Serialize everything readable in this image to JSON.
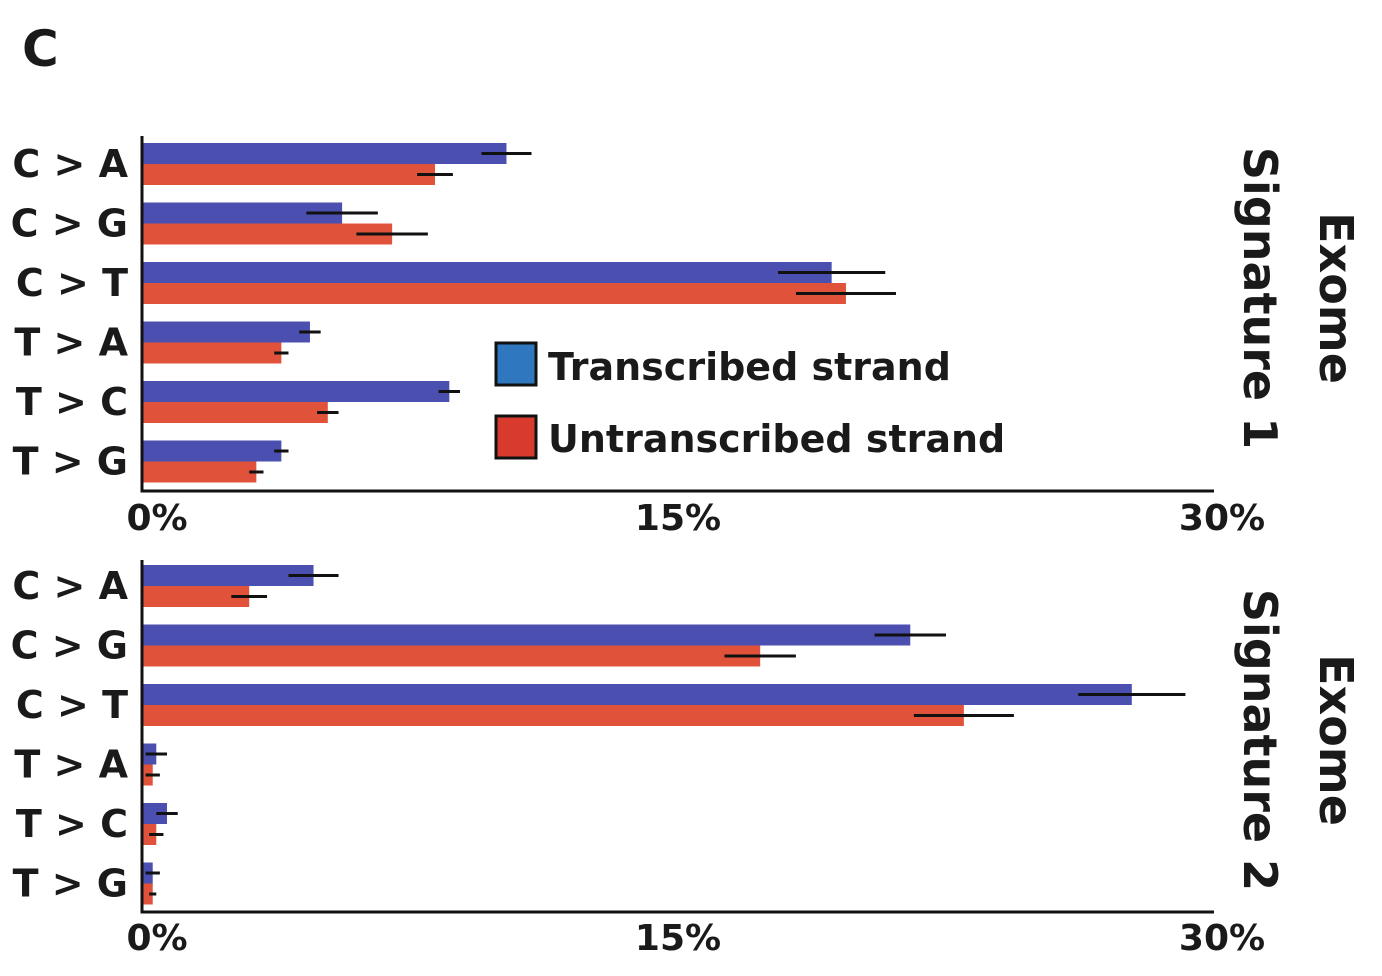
{
  "panel_label": "C",
  "legend": {
    "transcribed": "Transcribed strand",
    "untranscribed": "Untranscribed strand"
  },
  "colors": {
    "transcribed": "#4a4fb0",
    "untranscribed": "#e0533a",
    "legend_transcribed": "#2f78c0",
    "legend_untranscribed": "#d83a2e"
  },
  "chart_data": [
    {
      "type": "bar",
      "orientation": "horizontal",
      "title_line1": "Exome",
      "title_line2": "Signature 1",
      "categories": [
        "C > A",
        "C > G",
        "C > T",
        "T > A",
        "T > C",
        "T > G"
      ],
      "series": [
        {
          "name": "Transcribed strand",
          "values": [
            10.2,
            5.6,
            19.3,
            4.7,
            8.6,
            3.9
          ],
          "errors": [
            0.7,
            1.0,
            1.5,
            0.3,
            0.3,
            0.2
          ]
        },
        {
          "name": "Untranscribed strand",
          "values": [
            8.2,
            7.0,
            19.7,
            3.9,
            5.2,
            3.2
          ],
          "errors": [
            0.5,
            1.0,
            1.4,
            0.2,
            0.3,
            0.2
          ]
        }
      ],
      "xlim": [
        0,
        30
      ],
      "xticks": [
        "0%",
        "15%",
        "30%"
      ],
      "legend_position": "center-right"
    },
    {
      "type": "bar",
      "orientation": "horizontal",
      "title_line1": "Exome",
      "title_line2": "Signature 2",
      "categories": [
        "C > A",
        "C > G",
        "C > T",
        "T > A",
        "T > C",
        "T > G"
      ],
      "series": [
        {
          "name": "Transcribed strand",
          "values": [
            4.8,
            21.5,
            27.7,
            0.4,
            0.7,
            0.3
          ],
          "errors": [
            0.7,
            1.0,
            1.5,
            0.3,
            0.3,
            0.2
          ]
        },
        {
          "name": "Untranscribed strand",
          "values": [
            3.0,
            17.3,
            23.0,
            0.3,
            0.4,
            0.3
          ],
          "errors": [
            0.5,
            1.0,
            1.4,
            0.2,
            0.2,
            0.1
          ]
        }
      ],
      "xlim": [
        0,
        30
      ],
      "xticks": [
        "0%",
        "15%",
        "30%"
      ]
    }
  ]
}
